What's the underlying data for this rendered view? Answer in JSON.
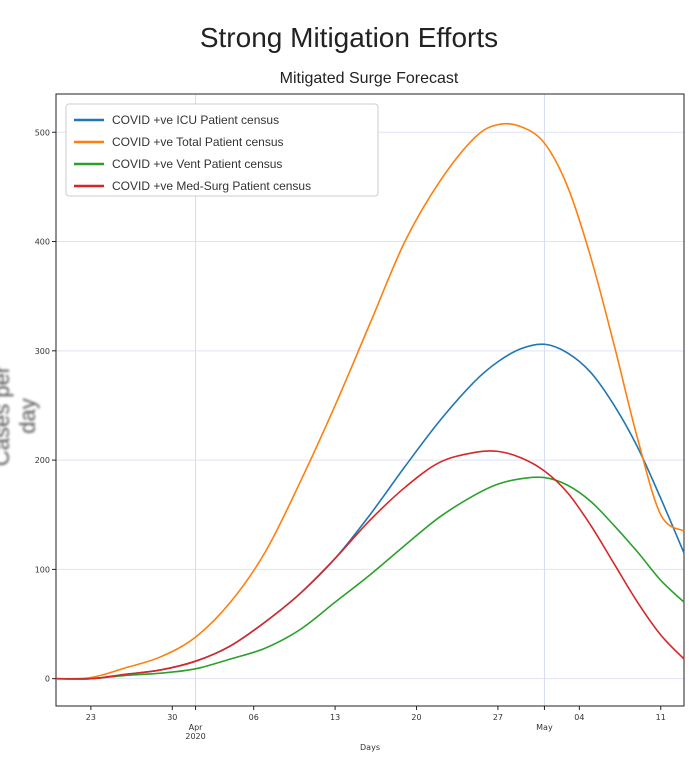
{
  "page": {
    "title": "Strong Mitigation Efforts"
  },
  "chart_data": {
    "type": "line",
    "title": "Mitigated Surge Forecast",
    "xlabel": "Days",
    "ylabel": "Cases per day",
    "ylim": [
      -25,
      535
    ],
    "xlim": [
      0,
      54
    ],
    "x_unit": "days since 2020-03-20",
    "yticks": [
      0,
      100,
      200,
      300,
      400,
      500
    ],
    "xticks": [
      {
        "x": 3,
        "label": "23"
      },
      {
        "x": 10,
        "label": "30"
      },
      {
        "x": 12,
        "label": "Apr",
        "label2": "2020"
      },
      {
        "x": 17,
        "label": "06"
      },
      {
        "x": 24,
        "label": "13"
      },
      {
        "x": 31,
        "label": "20"
      },
      {
        "x": 38,
        "label": "27"
      },
      {
        "x": 42,
        "label": "May"
      },
      {
        "x": 45,
        "label": "04"
      },
      {
        "x": 52,
        "label": "11"
      }
    ],
    "grid": true,
    "legend_position": "top-left",
    "x": [
      0,
      3,
      6,
      9,
      12,
      15,
      18,
      21,
      24,
      27,
      30,
      33,
      36,
      38,
      40,
      42,
      44,
      46,
      48,
      50,
      52,
      54
    ],
    "series": [
      {
        "name": "COVID +ve ICU Patient census",
        "color": "#1f77b4",
        "values": [
          0,
          0,
          4,
          8,
          16,
          30,
          52,
          78,
          110,
          150,
          194,
          236,
          272,
          290,
          302,
          306,
          298,
          280,
          250,
          212,
          165,
          115
        ]
      },
      {
        "name": "COVID +ve Total Patient census",
        "color": "#ff7f0e",
        "values": [
          0,
          1,
          10,
          20,
          38,
          70,
          116,
          180,
          250,
          325,
          400,
          455,
          495,
          507,
          505,
          490,
          450,
          385,
          305,
          220,
          150,
          135
        ]
      },
      {
        "name": "COVID +ve Vent Patient census",
        "color": "#2ca02c",
        "values": [
          0,
          0,
          3,
          5,
          9,
          18,
          28,
          45,
          70,
          95,
          122,
          148,
          168,
          178,
          183,
          184,
          177,
          162,
          140,
          116,
          90,
          70
        ]
      },
      {
        "name": "COVID +ve Med-Surg Patient census",
        "color": "#d62728",
        "values": [
          0,
          0,
          4,
          8,
          16,
          30,
          52,
          78,
          110,
          145,
          175,
          198,
          207,
          208,
          202,
          190,
          170,
          140,
          105,
          70,
          40,
          18
        ]
      }
    ]
  }
}
